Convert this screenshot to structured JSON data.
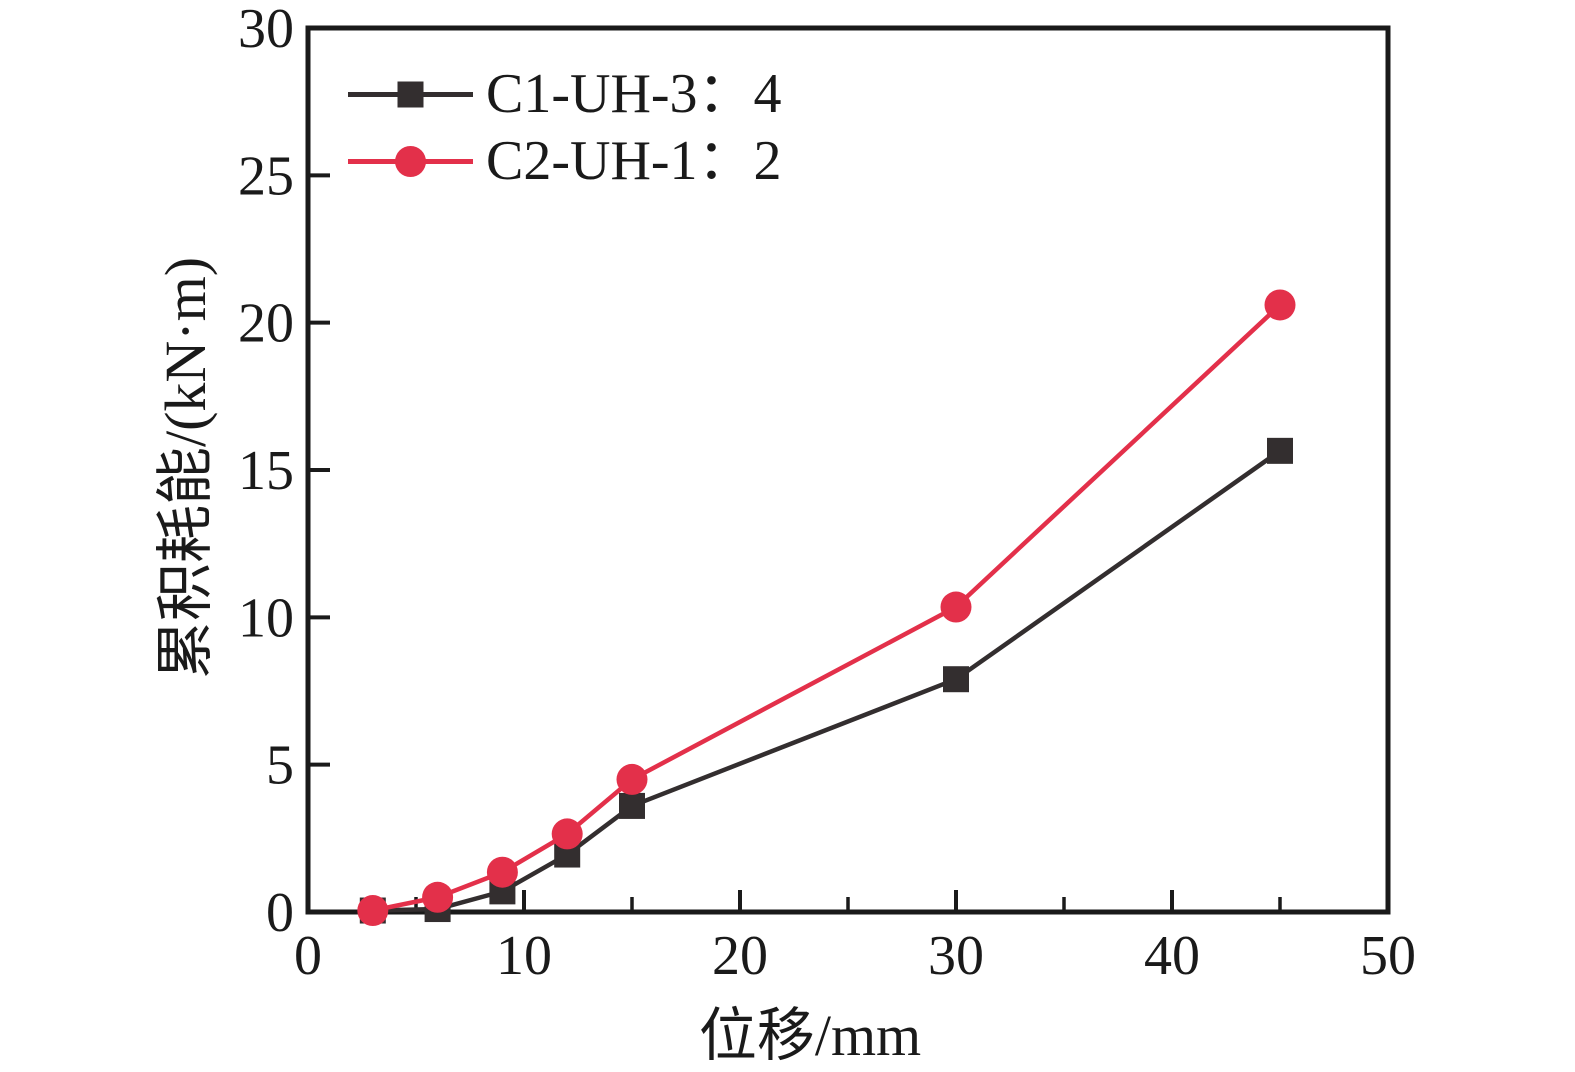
{
  "figure": {
    "background": "#ffffff",
    "axis_color": "#1a1a1a"
  },
  "chart_data": {
    "type": "line",
    "title": "",
    "xlabel": "位移/mm",
    "ylabel": "累积耗能/(kN·m)",
    "xlim": [
      0,
      50
    ],
    "ylim": [
      0,
      30
    ],
    "grid": false,
    "legend_position": "top-left",
    "x": [
      3,
      6,
      9,
      12,
      15,
      30,
      45
    ],
    "series": [
      {
        "name": "C1-UH-3：4",
        "color": "#332e2f",
        "marker": "square",
        "values": [
          0.05,
          0.1,
          0.7,
          1.95,
          3.6,
          7.9,
          15.65
        ]
      },
      {
        "name": "C2-UH-1：2",
        "color": "#e3304a",
        "marker": "circle",
        "values": [
          0.05,
          0.5,
          1.35,
          2.65,
          4.5,
          10.35,
          20.6
        ]
      }
    ],
    "xticks_major": [
      0,
      10,
      20,
      30,
      40,
      50
    ],
    "xticks_minor": [
      5,
      15,
      25,
      35,
      45
    ],
    "yticks_major": [
      0,
      5,
      10,
      15,
      20,
      25,
      30
    ]
  }
}
